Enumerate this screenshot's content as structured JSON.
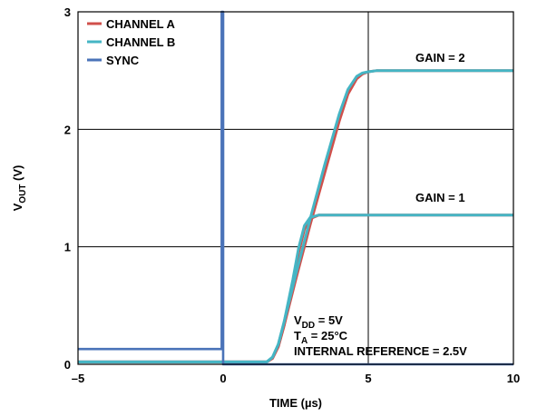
{
  "chart_data": {
    "type": "line",
    "title": "",
    "xlabel": "TIME (µs)",
    "ylabel": {
      "main": "V",
      "sub": "OUT",
      "unit": " (V)"
    },
    "xlim": [
      -5,
      10
    ],
    "ylim": [
      0,
      3
    ],
    "xticks": [
      -5,
      0,
      5,
      10
    ],
    "xtick_labels": [
      "–5",
      "0",
      "5",
      "10"
    ],
    "yticks": [
      0,
      1,
      2,
      3
    ],
    "ytick_labels": [
      "0",
      "1",
      "2",
      "3"
    ],
    "grid_x": [
      0,
      5
    ],
    "grid_y": [
      1,
      2
    ],
    "legend_position": "top-left",
    "series": [
      {
        "name": "CHANNEL A",
        "color": "#d0504b",
        "x": [
          -5,
          1.5,
          1.7,
          1.9,
          2.1,
          2.5,
          3.0,
          3.5,
          4.0,
          4.3,
          4.6,
          4.8,
          5.0,
          5.3,
          6.0,
          7.0,
          8.0,
          10.0
        ],
        "y": [
          0.02,
          0.02,
          0.05,
          0.15,
          0.33,
          0.72,
          1.19,
          1.63,
          2.07,
          2.3,
          2.43,
          2.47,
          2.49,
          2.5,
          2.5,
          2.5,
          2.5,
          2.5
        ]
      },
      {
        "name": "CHANNEL A (GAIN = 1)",
        "color": "#d0504b",
        "x": [
          -5,
          1.5,
          1.7,
          1.9,
          2.1,
          2.4,
          2.6,
          2.8,
          3.0,
          3.3,
          3.7,
          4.5,
          6.0,
          10.0
        ],
        "y": [
          0.02,
          0.02,
          0.05,
          0.15,
          0.33,
          0.68,
          0.95,
          1.15,
          1.24,
          1.27,
          1.27,
          1.27,
          1.27,
          1.27
        ]
      },
      {
        "name": "CHANNEL B",
        "color": "#45b5c4",
        "x": [
          -5,
          1.5,
          1.7,
          1.9,
          2.1,
          2.5,
          3.0,
          3.5,
          4.0,
          4.3,
          4.6,
          4.8,
          5.0,
          5.3,
          6.0,
          7.0,
          8.0,
          10.0
        ],
        "y": [
          0.02,
          0.02,
          0.06,
          0.17,
          0.36,
          0.76,
          1.24,
          1.7,
          2.13,
          2.34,
          2.45,
          2.48,
          2.49,
          2.5,
          2.5,
          2.5,
          2.5,
          2.5
        ]
      },
      {
        "name": "CHANNEL B (GAIN = 1)",
        "color": "#45b5c4",
        "x": [
          -5,
          1.5,
          1.7,
          1.9,
          2.1,
          2.4,
          2.6,
          2.8,
          3.0,
          3.3,
          3.7,
          4.5,
          6.0,
          10.0
        ],
        "y": [
          0.02,
          0.02,
          0.06,
          0.17,
          0.36,
          0.72,
          0.99,
          1.18,
          1.25,
          1.27,
          1.27,
          1.27,
          1.27,
          1.27
        ]
      },
      {
        "name": "SYNC",
        "color": "#4a73b8",
        "x": [
          -5,
          -0.05,
          -0.05,
          0,
          0,
          10
        ],
        "y": [
          0.13,
          0.13,
          3.0,
          3.0,
          0.0,
          0.0
        ]
      }
    ],
    "legend": [
      {
        "label": "CHANNEL A",
        "color": "#d0504b"
      },
      {
        "label": "CHANNEL B",
        "color": "#45b5c4"
      },
      {
        "label": "SYNC",
        "color": "#4a73b8"
      }
    ],
    "annotations": {
      "gain2": "GAIN = 2",
      "gain1": "GAIN = 1",
      "vdd": {
        "main": "V",
        "sub": "DD",
        "rest": " = 5V"
      },
      "ta": {
        "main": "T",
        "sub": "A",
        "rest": " = 25°C"
      },
      "ref": "INTERNAL REFERENCE = 2.5V"
    }
  }
}
